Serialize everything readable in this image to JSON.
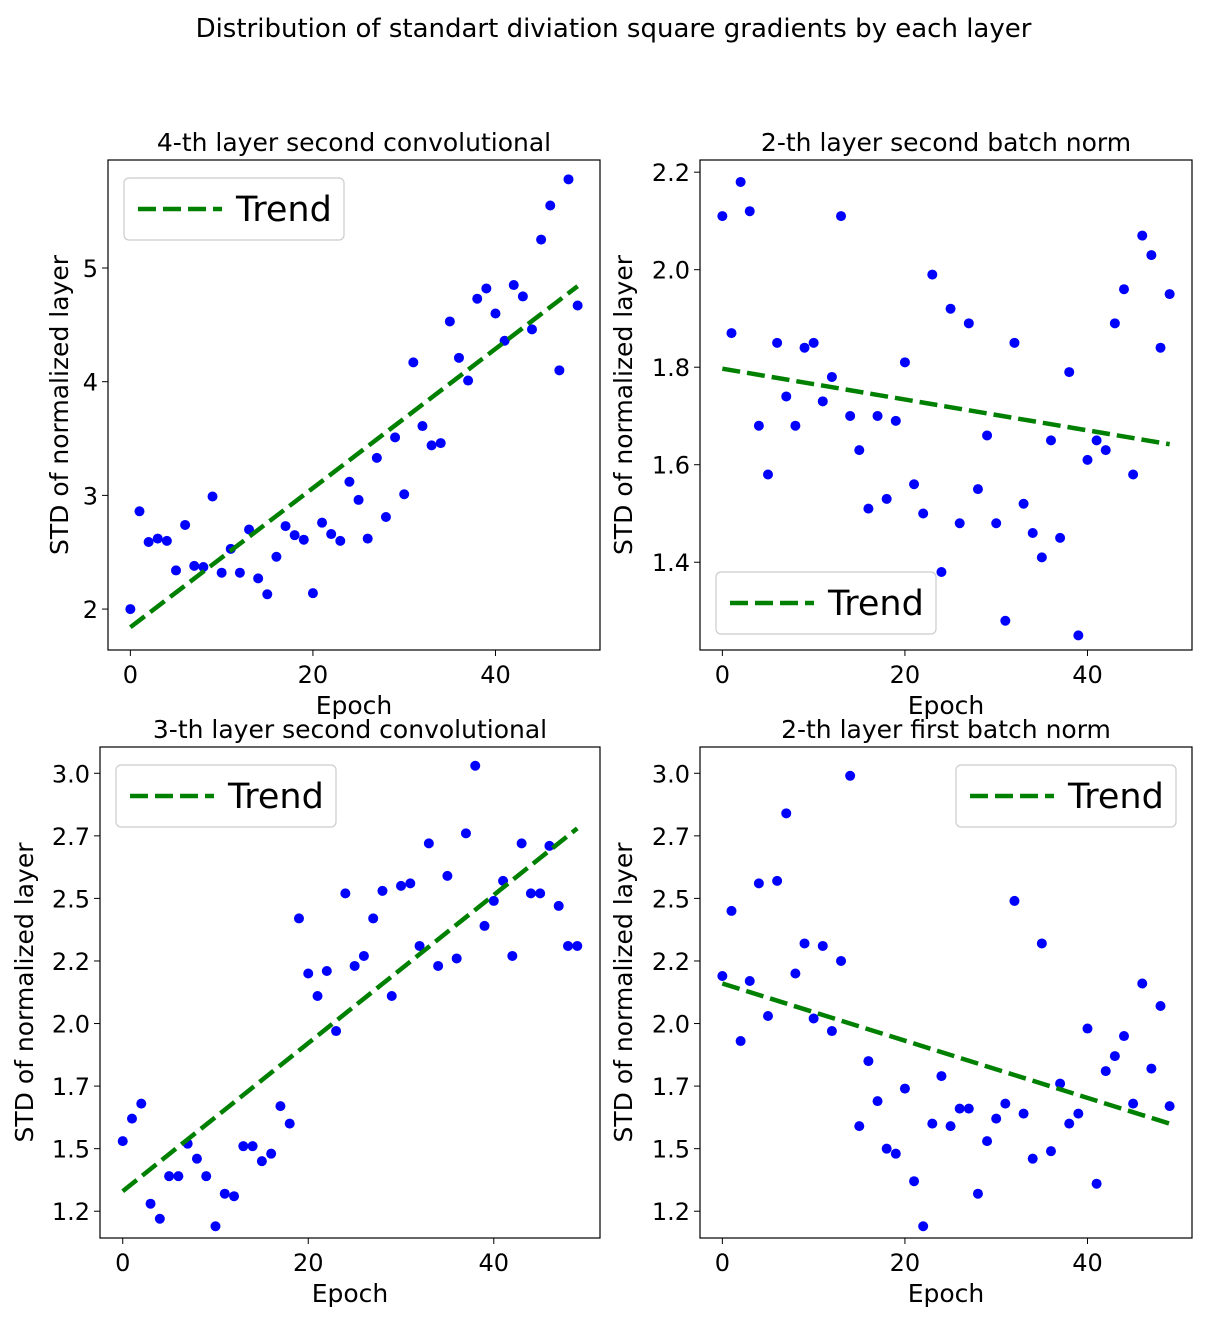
{
  "suptitle": "Distribution of standart diviation square gradients by each layer",
  "colors": {
    "points": "#0000ff",
    "trend": "#008000"
  },
  "chart_data": [
    {
      "type": "scatter",
      "title": "4-th layer second convolutional",
      "xlabel": "Epoch",
      "ylabel": "STD of normalized layer",
      "xlim": [
        -2.45,
        51.45
      ],
      "ylim": [
        1.64,
        5.95
      ],
      "xticks": [
        0,
        20,
        40
      ],
      "xtick_labels": [
        "0",
        "20",
        "40"
      ],
      "yticks": [
        2,
        3,
        4,
        5
      ],
      "ytick_labels": [
        "2",
        "3",
        "4",
        "5"
      ],
      "legend": {
        "label": "Trend",
        "position": "upper-left"
      },
      "trend": {
        "x": [
          0,
          49
        ],
        "y": [
          1.84,
          4.84
        ]
      },
      "points": {
        "x": [
          0,
          1,
          2,
          3,
          4,
          5,
          6,
          7,
          8,
          9,
          10,
          11,
          12,
          13,
          14,
          15,
          16,
          17,
          18,
          19,
          20,
          21,
          22,
          23,
          24,
          25,
          26,
          27,
          28,
          29,
          30,
          31,
          32,
          33,
          34,
          35,
          36,
          37,
          38,
          39,
          40,
          41,
          42,
          43,
          44,
          45,
          46,
          47,
          48,
          49
        ],
        "y": [
          2.0,
          2.86,
          2.59,
          2.62,
          2.6,
          2.34,
          2.74,
          2.38,
          2.37,
          2.99,
          2.32,
          2.53,
          2.32,
          2.7,
          2.27,
          2.13,
          2.46,
          2.73,
          2.65,
          2.61,
          2.14,
          2.76,
          2.66,
          2.6,
          3.12,
          2.96,
          2.62,
          3.33,
          2.81,
          3.51,
          3.01,
          4.17,
          3.61,
          3.44,
          3.46,
          4.53,
          4.21,
          4.01,
          4.73,
          4.82,
          4.6,
          4.36,
          4.85,
          4.75,
          4.46,
          5.25,
          5.55,
          4.1,
          5.78,
          4.67
        ]
      }
    },
    {
      "type": "scatter",
      "title": "2-th layer second batch norm",
      "xlabel": "Epoch",
      "ylabel": "STD of normalized layer",
      "xlim": [
        -2.45,
        51.45
      ],
      "ylim": [
        1.22,
        2.225
      ],
      "xticks": [
        0,
        20,
        40
      ],
      "xtick_labels": [
        "0",
        "20",
        "40"
      ],
      "yticks": [
        1.4,
        1.6,
        1.8,
        2.0,
        2.2
      ],
      "ytick_labels": [
        "1.4",
        "1.6",
        "1.8",
        "2.0",
        "2.2"
      ],
      "legend": {
        "label": "Trend",
        "position": "lower-left"
      },
      "trend": {
        "x": [
          0,
          49
        ],
        "y": [
          1.797,
          1.642
        ]
      },
      "points": {
        "x": [
          0,
          1,
          2,
          3,
          4,
          5,
          6,
          7,
          8,
          9,
          10,
          11,
          12,
          13,
          14,
          15,
          16,
          17,
          18,
          19,
          20,
          21,
          22,
          23,
          24,
          25,
          26,
          27,
          28,
          29,
          30,
          31,
          32,
          33,
          34,
          35,
          36,
          37,
          38,
          39,
          40,
          41,
          42,
          43,
          44,
          45,
          46,
          47,
          48,
          49
        ],
        "y": [
          2.11,
          1.87,
          2.18,
          2.12,
          1.68,
          1.58,
          1.85,
          1.74,
          1.68,
          1.84,
          1.85,
          1.73,
          1.78,
          2.11,
          1.7,
          1.63,
          1.51,
          1.7,
          1.53,
          1.69,
          1.81,
          1.56,
          1.5,
          1.99,
          1.38,
          1.92,
          1.48,
          1.89,
          1.55,
          1.66,
          1.48,
          1.28,
          1.85,
          1.52,
          1.46,
          1.41,
          1.65,
          1.45,
          1.79,
          1.25,
          1.61,
          1.65,
          1.63,
          1.89,
          1.96,
          1.58,
          2.07,
          2.03,
          1.84,
          1.95
        ]
      }
    },
    {
      "type": "scatter",
      "title": "3-th layer second convolutional",
      "xlabel": "Epoch",
      "ylabel": "STD of normalized layer",
      "xlim": [
        -2.45,
        51.45
      ],
      "ylim": [
        1.093,
        3.055
      ],
      "xticks": [
        0,
        20,
        40
      ],
      "xtick_labels": [
        "0",
        "20",
        "40"
      ],
      "yticks": [
        1.2,
        1.45,
        1.7,
        1.95,
        2.2,
        2.45,
        2.7,
        2.95
      ],
      "ytick_labels": [
        "1.2",
        "1.5",
        "1.7",
        "2.0",
        "2.2",
        "2.5",
        "2.7",
        "3.0"
      ],
      "legend": {
        "label": "Trend",
        "position": "upper-left"
      },
      "trend": {
        "x": [
          0,
          49
        ],
        "y": [
          1.28,
          2.73
        ]
      },
      "points": {
        "x": [
          0,
          1,
          2,
          3,
          4,
          5,
          6,
          7,
          8,
          9,
          10,
          11,
          12,
          13,
          14,
          15,
          16,
          17,
          18,
          19,
          20,
          21,
          22,
          23,
          24,
          25,
          26,
          27,
          28,
          29,
          30,
          31,
          32,
          33,
          34,
          35,
          36,
          37,
          38,
          39,
          40,
          41,
          42,
          43,
          44,
          45,
          46,
          47,
          48,
          49
        ],
        "y": [
          1.48,
          1.57,
          1.63,
          1.23,
          1.17,
          1.34,
          1.34,
          1.47,
          1.41,
          1.34,
          1.14,
          1.27,
          1.26,
          1.46,
          1.46,
          1.4,
          1.43,
          1.62,
          1.55,
          2.37,
          2.15,
          2.06,
          2.16,
          1.92,
          2.47,
          2.18,
          2.22,
          2.37,
          2.48,
          2.06,
          2.5,
          2.51,
          2.26,
          2.67,
          2.18,
          2.54,
          2.21,
          2.71,
          2.98,
          2.34,
          2.44,
          2.52,
          2.22,
          2.67,
          2.47,
          2.47,
          2.66,
          2.42,
          2.26,
          2.26
        ]
      }
    },
    {
      "type": "scatter",
      "title": "2-th layer first batch norm",
      "xlabel": "Epoch",
      "ylabel": "STD of normalized layer",
      "xlim": [
        -2.45,
        51.45
      ],
      "ylim": [
        1.093,
        3.055
      ],
      "xticks": [
        0,
        20,
        40
      ],
      "xtick_labels": [
        "0",
        "20",
        "40"
      ],
      "yticks": [
        1.2,
        1.45,
        1.7,
        1.95,
        2.2,
        2.45,
        2.7,
        2.95
      ],
      "ytick_labels": [
        "1.2",
        "1.5",
        "1.7",
        "2.0",
        "2.2",
        "2.5",
        "2.7",
        "3.0"
      ],
      "legend": {
        "label": "Trend",
        "position": "upper-right"
      },
      "trend": {
        "x": [
          0,
          49
        ],
        "y": [
          2.11,
          1.55
        ]
      },
      "points": {
        "x": [
          0,
          1,
          2,
          3,
          4,
          5,
          6,
          7,
          8,
          9,
          10,
          11,
          12,
          13,
          14,
          15,
          16,
          17,
          18,
          19,
          20,
          21,
          22,
          23,
          24,
          25,
          26,
          27,
          28,
          29,
          30,
          31,
          32,
          33,
          34,
          35,
          36,
          37,
          38,
          39,
          40,
          41,
          42,
          43,
          44,
          45,
          46,
          47,
          48,
          49
        ],
        "y": [
          2.14,
          2.4,
          1.88,
          2.12,
          2.51,
          1.98,
          2.52,
          2.79,
          2.15,
          2.27,
          1.97,
          2.26,
          1.92,
          2.2,
          2.94,
          1.54,
          1.8,
          1.64,
          1.45,
          1.43,
          1.69,
          1.32,
          1.14,
          1.55,
          1.74,
          1.54,
          1.61,
          1.61,
          1.27,
          1.48,
          1.57,
          1.63,
          2.44,
          1.59,
          1.41,
          2.27,
          1.44,
          1.71,
          1.55,
          1.59,
          1.93,
          1.31,
          1.76,
          1.82,
          1.9,
          1.63,
          2.11,
          1.77,
          2.02,
          1.62
        ]
      }
    }
  ]
}
